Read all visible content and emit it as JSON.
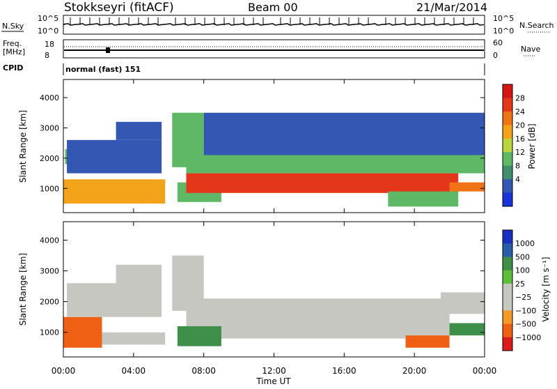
{
  "header": {
    "station": "Stokkseyri (fitACF)",
    "beam": "Beam 00",
    "date": "21/Mar/2014"
  },
  "top_panels": {
    "nsky_label": "N.Sky",
    "nsky_ticks": [
      "10^5",
      "10^0"
    ],
    "nsearch_label": "N.Search",
    "nsearch_ticks": [
      "10^5",
      "10^0"
    ],
    "freq_label": "Freq.",
    "freq_unit": "[MHz]",
    "freq_ticks": [
      "18",
      "8"
    ],
    "nave_label": "Nave",
    "nave_ticks": [
      "60",
      "0"
    ],
    "cpid_label": "CPID",
    "cpid_value": "normal (fast) 151"
  },
  "colors": {
    "power_scale": [
      "#1a33d6",
      "#3357b3",
      "#3f8f6e",
      "#5fb866",
      "#b9d73c",
      "#f3a31a",
      "#f07318",
      "#e3361a",
      "#d51414"
    ],
    "velocity_scale": [
      "#dd1a1a",
      "#f06014",
      "#f39a2a",
      "#c7c7c1",
      "#c7c7c1",
      "#5cbf3c",
      "#3e8f4a",
      "#2a5da8",
      "#1a2fbf"
    ]
  },
  "chart_data": [
    {
      "type": "heatmap",
      "name": "power",
      "ylabel": "Slant Range [km]",
      "ylim": [
        200,
        4600
      ],
      "yticks": [
        "1000",
        "2000",
        "3000",
        "4000"
      ],
      "xlim": [
        0,
        24
      ],
      "xticks": [
        "00:00",
        "04:00",
        "08:00",
        "12:00",
        "16:00",
        "20:00",
        "00:00"
      ],
      "colorbar_label": "Power [dB]",
      "colorbar_range": [
        0,
        32
      ],
      "colorbar_ticks": [
        "28",
        "24",
        "20",
        "16",
        "12",
        "8",
        "4"
      ],
      "bands": [
        {
          "t0": 0.0,
          "t1": 5.8,
          "r0": 500,
          "r1": 1300,
          "value": 21
        },
        {
          "t0": 0.1,
          "t1": 1.6,
          "r0": 1800,
          "r1": 2300,
          "value": 12
        },
        {
          "t0": 0.2,
          "t1": 5.6,
          "r0": 1500,
          "r1": 2600,
          "value": 7
        },
        {
          "t0": 3.0,
          "t1": 5.6,
          "r0": 2600,
          "r1": 3200,
          "value": 5
        },
        {
          "t0": 6.2,
          "t1": 8.0,
          "r0": 1700,
          "r1": 3500,
          "value": 14
        },
        {
          "t0": 6.5,
          "t1": 9.0,
          "r0": 550,
          "r1": 1200,
          "value": 14
        },
        {
          "t0": 7.0,
          "t1": 22.5,
          "r0": 850,
          "r1": 1500,
          "value": 26
        },
        {
          "t0": 7.0,
          "t1": 24.0,
          "r0": 1500,
          "r1": 2100,
          "value": 14
        },
        {
          "t0": 8.0,
          "t1": 24.0,
          "r0": 2100,
          "r1": 3500,
          "value": 6
        },
        {
          "t0": 22.0,
          "t1": 24.0,
          "r0": 900,
          "r1": 1200,
          "value": 22
        },
        {
          "t0": 18.5,
          "t1": 22.5,
          "r0": 400,
          "r1": 900,
          "value": 12
        }
      ]
    },
    {
      "type": "heatmap",
      "name": "velocity",
      "ylabel": "Slant Range [km]",
      "ylim": [
        200,
        4600
      ],
      "yticks": [
        "1000",
        "2000",
        "3000",
        "4000"
      ],
      "xlim": [
        0,
        24
      ],
      "xticks": [
        "00:00",
        "04:00",
        "08:00",
        "12:00",
        "16:00",
        "20:00",
        "00:00"
      ],
      "xlabel": "Time UT",
      "colorbar_label": "Velocity [m s⁻¹]",
      "colorbar_ticks": [
        "1000",
        "500",
        "100",
        "25",
        "−25",
        "−100",
        "−500",
        "−1000"
      ],
      "bands": [
        {
          "t0": 0.0,
          "t1": 2.2,
          "r0": 500,
          "r1": 1500,
          "value": -200
        },
        {
          "t0": 2.2,
          "t1": 5.8,
          "r0": 600,
          "r1": 1000,
          "value": 0
        },
        {
          "t0": 0.2,
          "t1": 5.6,
          "r0": 1500,
          "r1": 2600,
          "value": 0
        },
        {
          "t0": 3.0,
          "t1": 5.6,
          "r0": 2600,
          "r1": 3200,
          "value": 0
        },
        {
          "t0": 6.2,
          "t1": 8.0,
          "r0": 1700,
          "r1": 3500,
          "value": 0
        },
        {
          "t0": 7.0,
          "t1": 22.0,
          "r0": 800,
          "r1": 2100,
          "value": 0
        },
        {
          "t0": 6.5,
          "t1": 9.0,
          "r0": 550,
          "r1": 1200,
          "value": 200
        },
        {
          "t0": 22.0,
          "t1": 24.0,
          "r0": 900,
          "r1": 1300,
          "value": 200
        },
        {
          "t0": 19.5,
          "t1": 22.0,
          "r0": 500,
          "r1": 900,
          "value": -300
        },
        {
          "t0": 21.5,
          "t1": 24.0,
          "r0": 1600,
          "r1": 2300,
          "value": 0
        }
      ]
    }
  ]
}
